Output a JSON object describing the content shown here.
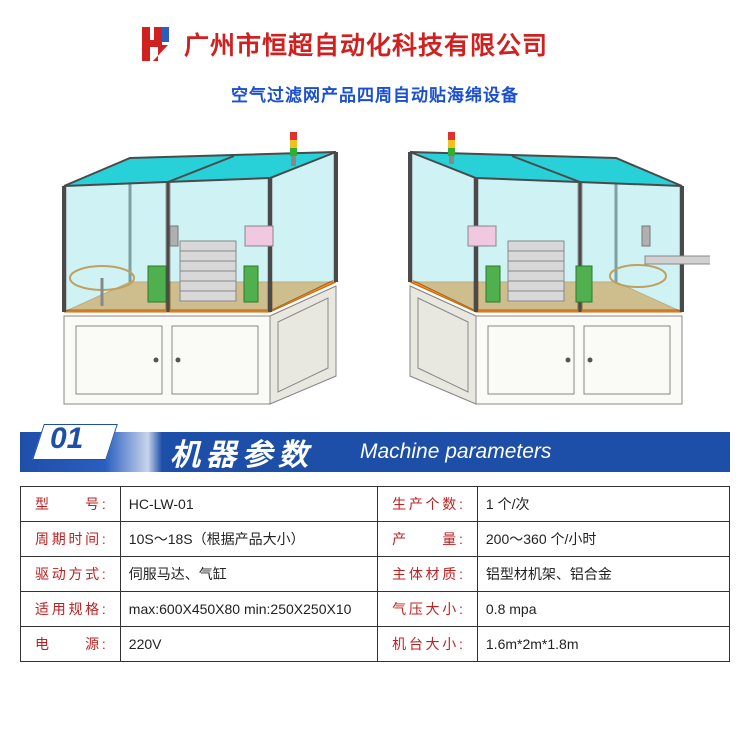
{
  "header": {
    "company": "广州市恒超自动化科技有限公司",
    "subtitle": "空气过滤网产品四周自动贴海绵设备",
    "logo_color_primary": "#d02020",
    "logo_color_accent": "#2a5fc0"
  },
  "machine_render": {
    "enclosure_top_color": "#28d0d8",
    "enclosure_panel_color": "#a8e8ec",
    "frame_color": "#4a4a4a",
    "cabinet_color": "#f4f4f0",
    "cabinet_border": "#888888",
    "floor_accent": "#ff8c1a",
    "signal_colors": [
      "#e03030",
      "#f0c020",
      "#30b030"
    ],
    "screen_color": "#f0c8e0"
  },
  "section": {
    "number": "01",
    "title_cn": "机器参数",
    "title_en": "Machine parameters",
    "banner_bg": "#1e4fa8"
  },
  "params": {
    "rows": [
      {
        "l1": "型　　号:",
        "v1": "HC-LW-01",
        "l2": "生产个数:",
        "v2": "1 个/次"
      },
      {
        "l1": "周期时间:",
        "v1": "10S～18S（根据产品大小）",
        "l2": "产　　量:",
        "v2": "200～360 个/小时"
      },
      {
        "l1": "驱动方式:",
        "v1": "伺服马达、气缸",
        "l2": "主体材质:",
        "v2": "铝型材机架、铝合金"
      },
      {
        "l1": "适用规格:",
        "v1": "max:600X450X80 min:250X250X10",
        "l2": "气压大小:",
        "v2": "0.8 mpa"
      },
      {
        "l1": "电　　源:",
        "v1": "220V",
        "l2": "机台大小:",
        "v2": "1.6m*2m*1.8m"
      }
    ],
    "label_color": "#c02020",
    "value_color": "#222222",
    "border_color": "#333333"
  }
}
